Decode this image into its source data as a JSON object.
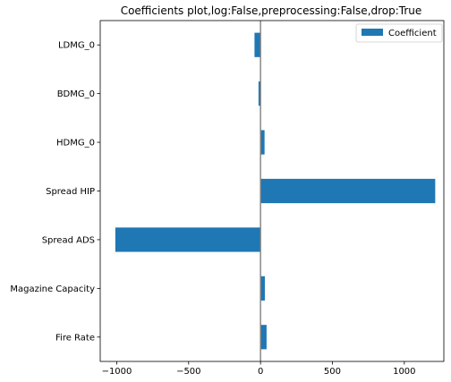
{
  "chart_data": {
    "type": "bar",
    "orientation": "horizontal",
    "title": "Coefficients plot,log:False,preprocessing:False,drop:True",
    "xlabel": "",
    "ylabel": "",
    "categories": [
      "Fire Rate",
      "Magazine Capacity",
      "Spread ADS",
      "Spread HIP",
      "HDMG_0",
      "BDMG_0",
      "LDMG_0"
    ],
    "series": [
      {
        "name": "Coefficient",
        "values": [
          42,
          30,
          -1010,
          1215,
          28,
          -14,
          -42
        ],
        "color": "#1f77b4"
      }
    ],
    "xlim": [
      -1115,
      1275
    ],
    "xticks": [
      -1000,
      -500,
      0,
      500,
      1000
    ],
    "xtick_labels": [
      "−1000",
      "−500",
      "0",
      "500",
      "1000"
    ],
    "zero_line": true,
    "grid": false,
    "legend": {
      "placement": "top-right",
      "entries": [
        "Coefficient"
      ]
    }
  }
}
